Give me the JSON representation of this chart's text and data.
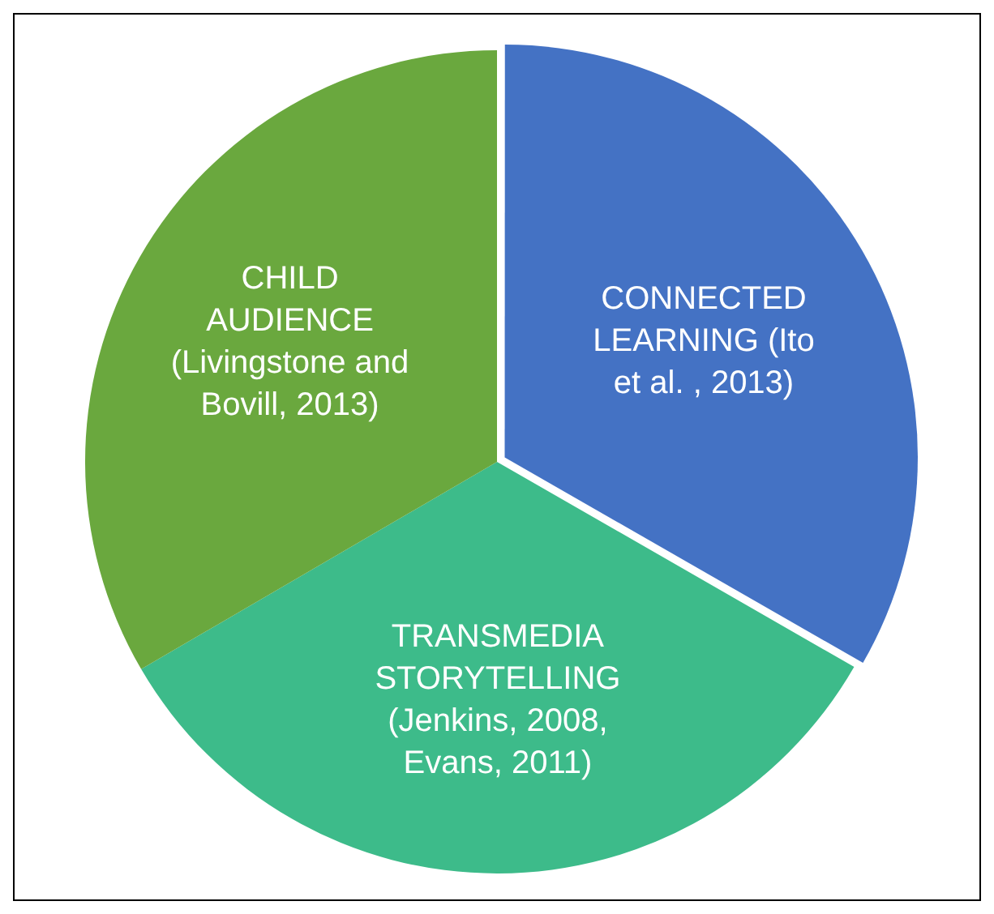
{
  "chart_data": {
    "type": "pie",
    "categories": [
      "CONNECTED LEARNING (Ito et al. , 2013)",
      "TRANSMEDIA STORYTELLING (Jenkins, 2008, Evans, 2011)",
      "CHILD AUDIENCE (Livingstone and Bovill, 2013)"
    ],
    "values": [
      33.3,
      33.3,
      33.4
    ],
    "colors": [
      "#4472c4",
      "#3dbb8a",
      "#6aa83e"
    ],
    "legend": false
  }
}
